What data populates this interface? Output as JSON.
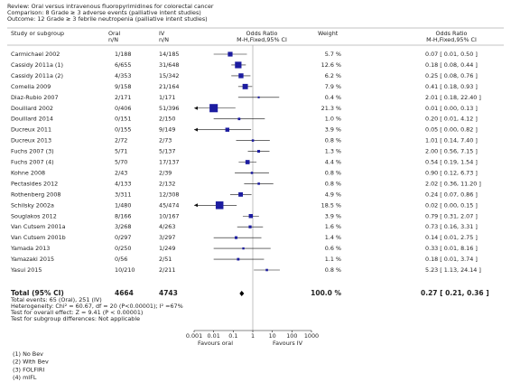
{
  "header": {
    "review": "Review:  Oral versus intravenous fluoropyrimidines for colorectal cancer",
    "comparison": "Comparison:  8 Grade ≥ 3 adverse events (palliative intent studies)",
    "outcome": "Outcome:  12 Grade ≥ 3 febrile neutropenia (palliative intent studies)"
  },
  "columns": {
    "study": "Study or subgroup",
    "oral": "Oral",
    "oral_sub": "n/N",
    "iv": "IV",
    "iv_sub": "n/N",
    "plot": "Odds Ratio",
    "plot_sub": "M-H,Fixed,95% CI",
    "weight": "Weight",
    "or": "Odds Ratio",
    "or_sub": "M-H,Fixed,95% CI"
  },
  "chart_data": {
    "type": "forest",
    "log": true,
    "xlim": [
      0.001,
      1000
    ],
    "xticks": [
      0.001,
      0.01,
      0.1,
      1,
      10,
      100,
      1000
    ],
    "color": "#1c1ca0",
    "left_label": "Favours oral",
    "right_label": "Favours IV",
    "rows": [
      {
        "study": "Carmichael 2002",
        "oral": "1/188",
        "iv": "14/185",
        "weight": 5.7,
        "weight_label": "5.7 %",
        "or": 0.07,
        "ci": [
          0.01,
          0.5
        ],
        "or_label": "0.07 [ 0.01, 0.50 ]"
      },
      {
        "study": "Cassidy 2011a (1)",
        "oral": "6/655",
        "iv": "31/648",
        "weight": 12.6,
        "weight_label": "12.6 %",
        "or": 0.18,
        "ci": [
          0.08,
          0.44
        ],
        "or_label": "0.18 [ 0.08, 0.44 ]"
      },
      {
        "study": "Cassidy 2011a (2)",
        "oral": "4/353",
        "iv": "15/342",
        "weight": 6.2,
        "weight_label": "6.2 %",
        "or": 0.25,
        "ci": [
          0.08,
          0.76
        ],
        "or_label": "0.25 [ 0.08, 0.76 ]"
      },
      {
        "study": "Comella 2009",
        "oral": "9/158",
        "iv": "21/164",
        "weight": 7.9,
        "weight_label": "7.9 %",
        "or": 0.41,
        "ci": [
          0.18,
          0.93
        ],
        "or_label": "0.41 [ 0.18, 0.93 ]"
      },
      {
        "study": "Diaz-Rubio 2007",
        "oral": "2/171",
        "iv": "1/171",
        "weight": 0.4,
        "weight_label": "0.4 %",
        "or": 2.01,
        "ci": [
          0.18,
          22.4
        ],
        "or_label": "2.01 [ 0.18, 22.40 ]"
      },
      {
        "study": "Douillard 2002",
        "oral": "0/406",
        "iv": "51/396",
        "weight": 21.3,
        "weight_label": "21.3 %",
        "or": 0.01,
        "ci": [
          0.0,
          0.13
        ],
        "or_label": "0.01 [ 0.00, 0.13 ]"
      },
      {
        "study": "Douillard 2014",
        "oral": "0/151",
        "iv": "2/150",
        "weight": 1.0,
        "weight_label": "1.0 %",
        "or": 0.2,
        "ci": [
          0.01,
          4.12
        ],
        "or_label": "0.20 [ 0.01, 4.12 ]"
      },
      {
        "study": "Ducreux 2011",
        "oral": "0/155",
        "iv": "9/149",
        "weight": 3.9,
        "weight_label": "3.9 %",
        "or": 0.05,
        "ci": [
          0.0,
          0.82
        ],
        "or_label": "0.05 [ 0.00, 0.82 ]"
      },
      {
        "study": "Ducreux 2013",
        "oral": "2/72",
        "iv": "2/73",
        "weight": 0.8,
        "weight_label": "0.8 %",
        "or": 1.01,
        "ci": [
          0.14,
          7.4
        ],
        "or_label": "1.01 [ 0.14, 7.40 ]"
      },
      {
        "study": "Fuchs 2007 (3)",
        "oral": "5/71",
        "iv": "5/137",
        "weight": 1.3,
        "weight_label": "1.3 %",
        "or": 2.0,
        "ci": [
          0.56,
          7.15
        ],
        "or_label": "2.00 [ 0.56, 7.15 ]"
      },
      {
        "study": "Fuchs 2007 (4)",
        "oral": "5/70",
        "iv": "17/137",
        "weight": 4.4,
        "weight_label": "4.4 %",
        "or": 0.54,
        "ci": [
          0.19,
          1.54
        ],
        "or_label": "0.54 [ 0.19, 1.54 ]"
      },
      {
        "study": "Kohne 2008",
        "oral": "2/43",
        "iv": "2/39",
        "weight": 0.8,
        "weight_label": "0.8 %",
        "or": 0.9,
        "ci": [
          0.12,
          6.73
        ],
        "or_label": "0.90 [ 0.12, 6.73 ]"
      },
      {
        "study": "Pectasides 2012",
        "oral": "4/133",
        "iv": "2/132",
        "weight": 0.8,
        "weight_label": "0.8 %",
        "or": 2.02,
        "ci": [
          0.36,
          11.2
        ],
        "or_label": "2.02 [ 0.36, 11.20 ]"
      },
      {
        "study": "Rothenberg 2008",
        "oral": "3/311",
        "iv": "12/308",
        "weight": 4.9,
        "weight_label": "4.9 %",
        "or": 0.24,
        "ci": [
          0.07,
          0.86
        ],
        "or_label": "0.24 [ 0.07, 0.86 ]"
      },
      {
        "study": "Schilsky 2002a",
        "oral": "1/480",
        "iv": "45/474",
        "weight": 18.5,
        "weight_label": "18.5 %",
        "or": 0.02,
        "ci": [
          0.0,
          0.15
        ],
        "or_label": "0.02 [ 0.00, 0.15 ]"
      },
      {
        "study": "Souglakos 2012",
        "oral": "8/166",
        "iv": "10/167",
        "weight": 3.9,
        "weight_label": "3.9 %",
        "or": 0.79,
        "ci": [
          0.31,
          2.07
        ],
        "or_label": "0.79 [ 0.31, 2.07 ]"
      },
      {
        "study": "Van Cutsem 2001a",
        "oral": "3/268",
        "iv": "4/263",
        "weight": 1.6,
        "weight_label": "1.6 %",
        "or": 0.73,
        "ci": [
          0.16,
          3.31
        ],
        "or_label": "0.73 [ 0.16, 3.31 ]"
      },
      {
        "study": "Van Cutsem 2001b",
        "oral": "0/297",
        "iv": "3/297",
        "weight": 1.4,
        "weight_label": "1.4 %",
        "or": 0.14,
        "ci": [
          0.01,
          2.75
        ],
        "or_label": "0.14 [ 0.01, 2.75 ]"
      },
      {
        "study": "Yamada 2013",
        "oral": "0/250",
        "iv": "1/249",
        "weight": 0.6,
        "weight_label": "0.6 %",
        "or": 0.33,
        "ci": [
          0.01,
          8.16
        ],
        "or_label": "0.33 [ 0.01, 8.16 ]"
      },
      {
        "study": "Yamazaki 2015",
        "oral": "0/56",
        "iv": "2/51",
        "weight": 1.1,
        "weight_label": "1.1 %",
        "or": 0.18,
        "ci": [
          0.01,
          3.74
        ],
        "or_label": "0.18 [ 0.01, 3.74 ]"
      },
      {
        "study": "Yasui 2015",
        "oral": "10/210",
        "iv": "2/211",
        "weight": 0.8,
        "weight_label": "0.8 %",
        "or": 5.23,
        "ci": [
          1.13,
          24.14
        ],
        "or_label": "5.23 [ 1.13, 24.14 ]"
      }
    ],
    "total": {
      "study": "Total (95% CI)",
      "oral": 4664,
      "iv": 4743,
      "weight_label": "100.0 %",
      "or": 0.27,
      "ci": [
        0.21,
        0.36
      ],
      "or_label": "0.27 [ 0.21, 0.36 ]",
      "notes": [
        "Total events: 65 (Oral), 251 (IV)",
        "Heterogeneity: Chi² = 60.67, df = 20 (P<0.00001); I² =67%",
        "Test for overall effect: Z = 9.41 (P < 0.00001)",
        "Test for subgroup differences: Not applicable"
      ]
    }
  },
  "footnotes": [
    "(1) No Bev",
    "(2) With Bev",
    "(3) FOLFIRI",
    "(4) mIFL"
  ]
}
